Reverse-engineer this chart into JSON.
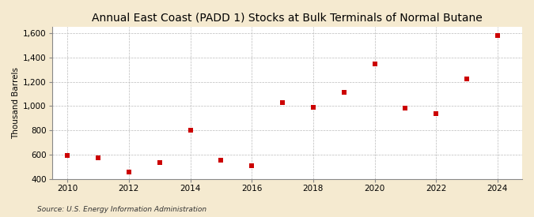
{
  "title": "Annual East Coast (PADD 1) Stocks at Bulk Terminals of Normal Butane",
  "ylabel": "Thousand Barrels",
  "source": "Source: U.S. Energy Information Administration",
  "years": [
    2010,
    2011,
    2012,
    2013,
    2014,
    2015,
    2016,
    2017,
    2018,
    2019,
    2020,
    2021,
    2022,
    2023,
    2024
  ],
  "values": [
    593,
    572,
    458,
    535,
    800,
    553,
    510,
    1028,
    990,
    1113,
    1347,
    985,
    940,
    1220,
    1583
  ],
  "marker_color": "#cc0000",
  "marker": "s",
  "marker_size": 4,
  "bg_color": "#f5ead0",
  "plot_bg_color": "#ffffff",
  "grid_color": "#bbbbbb",
  "xlim": [
    2009.5,
    2024.8
  ],
  "ylim": [
    400,
    1650
  ],
  "yticks": [
    400,
    600,
    800,
    1000,
    1200,
    1400,
    1600
  ],
  "xticks": [
    2010,
    2012,
    2014,
    2016,
    2018,
    2020,
    2022,
    2024
  ],
  "title_fontsize": 10,
  "label_fontsize": 7.5,
  "tick_fontsize": 7.5,
  "source_fontsize": 6.5
}
